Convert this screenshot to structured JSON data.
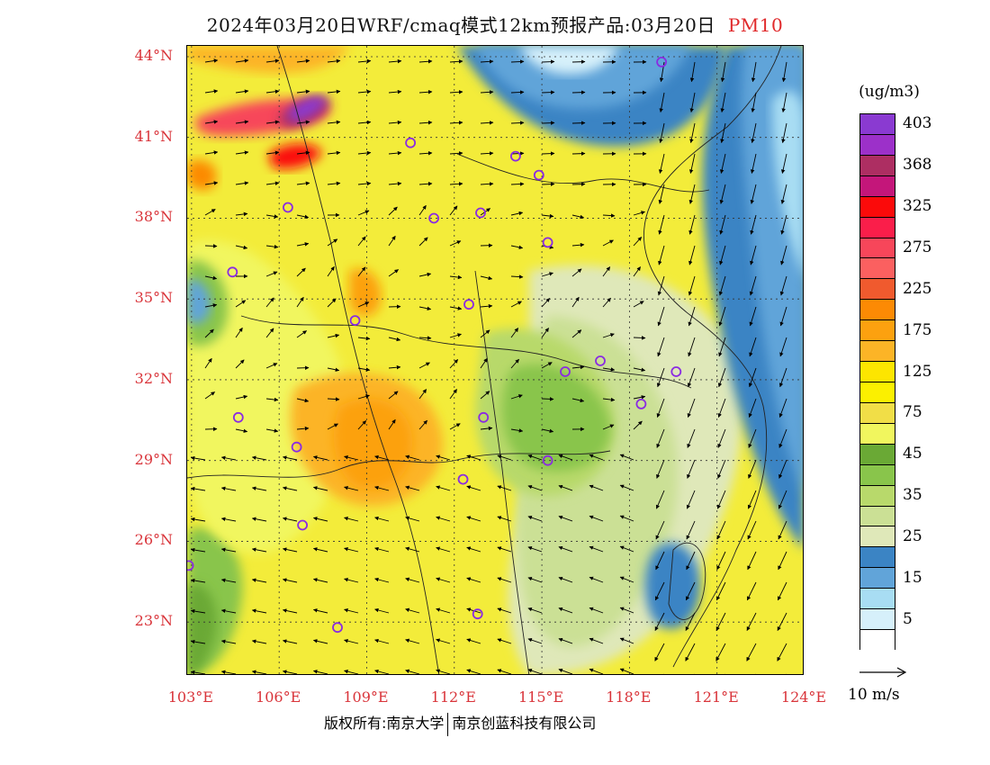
{
  "title": {
    "main": "2024年03月20日WRF/cmaq模式12km预报产品:03月20日",
    "variable": "PM10"
  },
  "map": {
    "lat_labels": [
      "44°N",
      "41°N",
      "38°N",
      "35°N",
      "32°N",
      "29°N",
      "26°N",
      "23°N"
    ],
    "lon_labels": [
      "103°E",
      "106°E",
      "109°E",
      "112°E",
      "115°E",
      "118°E",
      "121°E",
      "124°E"
    ],
    "lat_values": [
      44,
      41,
      38,
      35,
      32,
      29,
      26,
      23
    ],
    "lon_values": [
      103,
      106,
      109,
      112,
      115,
      118,
      121,
      124
    ],
    "extent": {
      "lon_min": 102.85,
      "lon_max": 124.0,
      "lat_min": 21.0,
      "lat_max": 44.4
    },
    "station_markers": [
      [
        108.0,
        22.8
      ],
      [
        112.8,
        23.3
      ],
      [
        102.9,
        25.1
      ],
      [
        106.8,
        26.6
      ],
      [
        112.3,
        28.3
      ],
      [
        115.2,
        29.0
      ],
      [
        106.6,
        29.5
      ],
      [
        104.6,
        30.6
      ],
      [
        113.0,
        30.6
      ],
      [
        118.4,
        31.1
      ],
      [
        117.0,
        32.7
      ],
      [
        115.8,
        32.3
      ],
      [
        119.6,
        32.3
      ],
      [
        108.6,
        34.2
      ],
      [
        112.5,
        34.8
      ],
      [
        104.4,
        36.0
      ],
      [
        115.2,
        37.1
      ],
      [
        106.3,
        38.4
      ],
      [
        111.3,
        38.0
      ],
      [
        112.9,
        38.2
      ],
      [
        114.1,
        40.3
      ],
      [
        114.9,
        39.6
      ],
      [
        110.5,
        40.8
      ],
      [
        119.1,
        43.8
      ]
    ]
  },
  "legend": {
    "unit": "(ug/m3)",
    "bins": [
      {
        "label": "403",
        "color": "#8a3ad1"
      },
      {
        "label": "",
        "color": "#9c30c9"
      },
      {
        "label": "368",
        "color": "#ad2e62"
      },
      {
        "label": "",
        "color": "#c4167a"
      },
      {
        "label": "325",
        "color": "#fb0a0a"
      },
      {
        "label": "",
        "color": "#fa1e4a"
      },
      {
        "label": "275",
        "color": "#f7465a"
      },
      {
        "label": "",
        "color": "#fb6060"
      },
      {
        "label": "225",
        "color": "#f05a2e"
      },
      {
        "label": "",
        "color": "#fc8a04"
      },
      {
        "label": "175",
        "color": "#fca10f"
      },
      {
        "label": "",
        "color": "#fcb426"
      },
      {
        "label": "125",
        "color": "#fde500"
      },
      {
        "label": "",
        "color": "#fbf000"
      },
      {
        "label": "75",
        "color": "#f1de47"
      },
      {
        "label": "",
        "color": "#f1f65e"
      },
      {
        "label": "45",
        "color": "#6aa935"
      },
      {
        "label": "",
        "color": "#89c54b"
      },
      {
        "label": "35",
        "color": "#b8d96b"
      },
      {
        "label": "",
        "color": "#cbe095"
      },
      {
        "label": "25",
        "color": "#dfe8b9"
      },
      {
        "label": "",
        "color": "#3b84c4"
      },
      {
        "label": "15",
        "color": "#61a4d9"
      },
      {
        "label": "",
        "color": "#a8ddf3"
      },
      {
        "label": "5",
        "color": "#d6f0fa"
      },
      {
        "label": "",
        "color": "#ffffff"
      }
    ],
    "wind_reference": "10 m/s"
  },
  "footer": {
    "left": "版权所有:南京大学",
    "right": "南京创蓝科技有限公司"
  }
}
